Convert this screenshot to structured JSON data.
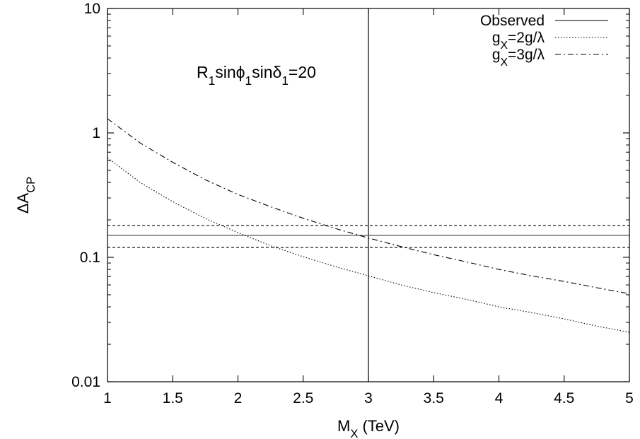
{
  "chart_data": {
    "type": "line",
    "xscale": "linear",
    "yscale": "log",
    "xlabel": "M",
    "xlabel_sub": "X",
    "xlabel_unit": " (TeV)",
    "ylabel": "ΔA",
    "ylabel_sub": "CP",
    "xlim": [
      1,
      5
    ],
    "ylim": [
      0.01,
      10
    ],
    "x_ticks": [
      1,
      1.5,
      2,
      2.5,
      3,
      3.5,
      4,
      4.5,
      5
    ],
    "x_tick_labels": [
      "1",
      "1.5",
      "2",
      "2.5",
      "3",
      "3.5",
      "4",
      "4.5",
      "5"
    ],
    "y_ticks": [
      0.01,
      0.1,
      1,
      10
    ],
    "y_tick_labels": [
      "0.01",
      "0.1",
      "1",
      "10"
    ],
    "annotation": {
      "parts": [
        {
          "t": "R",
          "sub": false
        },
        {
          "t": "1",
          "sub": true
        },
        {
          "t": "sinϕ",
          "sub": false
        },
        {
          "t": "1",
          "sub": true
        },
        {
          "t": "sinδ",
          "sub": false
        },
        {
          "t": "1",
          "sub": true
        },
        {
          "t": "=20",
          "sub": false
        }
      ],
      "x": 2.0,
      "y": 3.0
    },
    "legend_position": "top-right",
    "series": [
      {
        "name": "Observed",
        "style": "solid",
        "kind": "horizontal",
        "value": 0.15
      },
      {
        "name_parts": [
          {
            "t": "g",
            "sub": false
          },
          {
            "t": "X",
            "sub": true
          },
          {
            "t": "=2g/λ",
            "sub": false
          }
        ],
        "style": "dotted",
        "x": [
          1,
          1.25,
          1.5,
          1.75,
          2,
          2.25,
          2.5,
          2.75,
          3,
          3.25,
          3.5,
          3.75,
          4,
          4.25,
          4.5,
          4.75,
          5
        ],
        "y": [
          0.63,
          0.4,
          0.28,
          0.205,
          0.158,
          0.124,
          0.101,
          0.084,
          0.071,
          0.06,
          0.052,
          0.046,
          0.04,
          0.036,
          0.032,
          0.028,
          0.025
        ]
      },
      {
        "name_parts": [
          {
            "t": "g",
            "sub": false
          },
          {
            "t": "X",
            "sub": true
          },
          {
            "t": "=3g/λ",
            "sub": false
          }
        ],
        "style": "dashdot",
        "x": [
          1,
          1.25,
          1.5,
          1.75,
          2,
          2.25,
          2.5,
          2.75,
          3,
          3.25,
          3.5,
          3.75,
          4,
          4.25,
          4.5,
          4.75,
          5
        ],
        "y": [
          1.3,
          0.83,
          0.58,
          0.42,
          0.32,
          0.255,
          0.206,
          0.17,
          0.143,
          0.122,
          0.105,
          0.092,
          0.08,
          0.071,
          0.064,
          0.057,
          0.051
        ]
      }
    ],
    "reference_lines": [
      {
        "kind": "horizontal",
        "value": 0.18,
        "style": "dashed"
      },
      {
        "kind": "horizontal",
        "value": 0.12,
        "style": "dashed"
      },
      {
        "kind": "vertical",
        "value": 3,
        "style": "solid"
      }
    ]
  }
}
